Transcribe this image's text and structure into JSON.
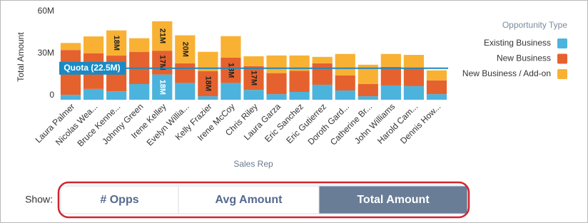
{
  "chart_data": {
    "type": "stacked_bar",
    "y_label": "Total Amount",
    "x_label": "Sales Rep",
    "categories": [
      "Laura Palmer",
      "Nicolas Wea...",
      "Bruce Kenne...",
      "Johnny Green",
      "Irene Kelley",
      "Evelyn Willia...",
      "Kelly Frazier",
      "Irene McCoy",
      "Chris Riley",
      "Laura Garza",
      "Eric Sanchez",
      "Eric Gutierrez",
      "Doroth Gard...",
      "Catherine Br...",
      "John Williams",
      "Harold Cam...",
      "Dennis How..."
    ],
    "series": [
      {
        "name": "Existing Business",
        "color": "#4cb3dd",
        "values": [
          3.5,
          7.7,
          6,
          11.2,
          18,
          12,
          2.5,
          12,
          7,
          4,
          5.6,
          10.7,
          6.6,
          2.5,
          10.2,
          9.7,
          4
        ],
        "value_labels": [
          null,
          null,
          null,
          null,
          "18M",
          null,
          null,
          null,
          null,
          null,
          null,
          null,
          null,
          null,
          null,
          null,
          null
        ]
      },
      {
        "name": "New Business",
        "color": "#e5622e",
        "values": [
          32,
          25.5,
          25.5,
          23,
          17,
          14,
          18,
          18,
          17,
          15,
          15,
          15.3,
          10.7,
          8.7,
          13.3,
          12.7,
          9.8
        ],
        "value_labels": [
          null,
          null,
          null,
          null,
          "17M",
          null,
          "18M",
          "18M",
          "17M",
          null,
          null,
          null,
          null,
          null,
          null,
          null,
          null
        ]
      },
      {
        "name": "New Business / Add-on",
        "color": "#f9b134",
        "values": [
          5,
          12,
          18,
          9.7,
          21,
          20,
          13.7,
          15.4,
          7,
          12.6,
          11,
          4.6,
          15.4,
          13.8,
          9.2,
          9.6,
          7.2
        ],
        "value_labels": [
          null,
          null,
          "18M",
          null,
          "21M",
          "20M",
          null,
          null,
          null,
          null,
          null,
          null,
          null,
          null,
          null,
          null,
          null
        ]
      }
    ],
    "ylim": [
      0,
      60
    ],
    "yticks": [
      {
        "value": 0,
        "label": "0"
      },
      {
        "value": 30,
        "label": "30M"
      },
      {
        "value": 60,
        "label": "60M"
      }
    ],
    "grid": false,
    "legend_title": "Opportunity Type",
    "legend": "right",
    "quota": {
      "label": "Quota (22.5M)",
      "value": 22.5,
      "color": "#1a8ac4"
    }
  },
  "controls": {
    "label": "Show:",
    "options": [
      "# Opps",
      "Avg Amount",
      "Total Amount"
    ],
    "selected": 2
  }
}
